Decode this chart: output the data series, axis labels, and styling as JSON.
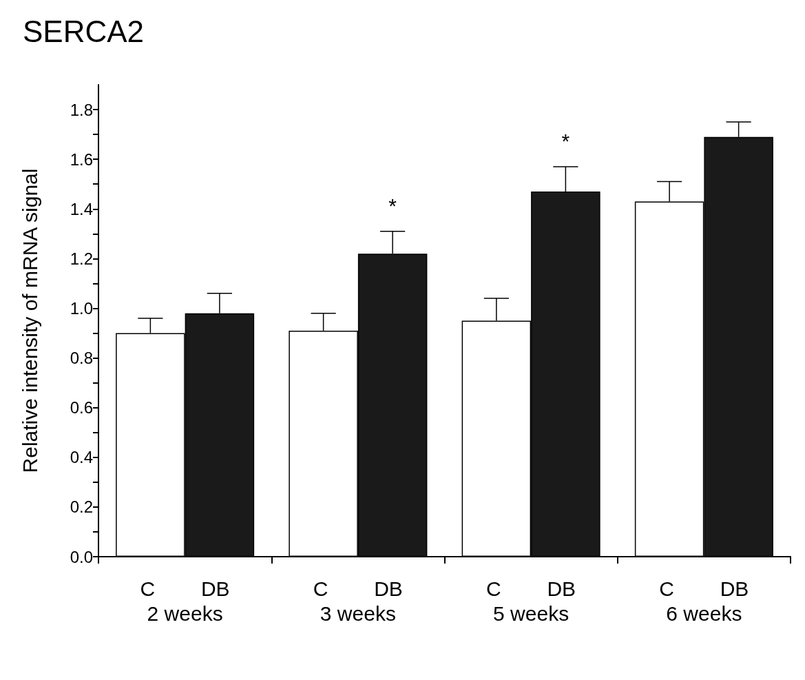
{
  "chart_data": {
    "type": "bar",
    "title": "SERCA2",
    "ylabel": "Relative intensity of mRNA signal",
    "categories": [
      "2 weeks",
      "3 weeks",
      "5 weeks",
      "6 weeks"
    ],
    "series": [
      {
        "name": "C",
        "color": "#ffffff",
        "values": [
          0.9,
          0.91,
          0.95,
          1.43
        ],
        "errors": [
          0.06,
          0.07,
          0.09,
          0.08
        ]
      },
      {
        "name": "DB",
        "color": "#1a1a1a",
        "values": [
          0.98,
          1.22,
          1.47,
          1.69
        ],
        "errors": [
          0.08,
          0.09,
          0.1,
          0.06
        ]
      }
    ],
    "ylim": [
      0,
      1.9
    ],
    "yticks": [
      {
        "value": 0,
        "label": "0.0"
      },
      {
        "value": 0.1,
        "label": null
      },
      {
        "value": 0.2,
        "label": "0.2"
      },
      {
        "value": 0.3,
        "label": null
      },
      {
        "value": 0.4,
        "label": "0.4"
      },
      {
        "value": 0.5,
        "label": null
      },
      {
        "value": 0.6,
        "label": "0.6"
      },
      {
        "value": 0.7,
        "label": null
      },
      {
        "value": 0.8,
        "label": "0.8"
      },
      {
        "value": 0.9,
        "label": null
      },
      {
        "value": 1.0,
        "label": "1.0"
      },
      {
        "value": 1.1,
        "label": null
      },
      {
        "value": 1.2,
        "label": "1.2"
      },
      {
        "value": 1.3,
        "label": null
      },
      {
        "value": 1.4,
        "label": "1.4"
      },
      {
        "value": 1.5,
        "label": null
      },
      {
        "value": 1.6,
        "label": "1.6"
      },
      {
        "value": 1.7,
        "label": null
      },
      {
        "value": 1.8,
        "label": "1.8"
      }
    ],
    "annotations": [
      "*",
      "*"
    ],
    "grid": false,
    "legend": false
  }
}
